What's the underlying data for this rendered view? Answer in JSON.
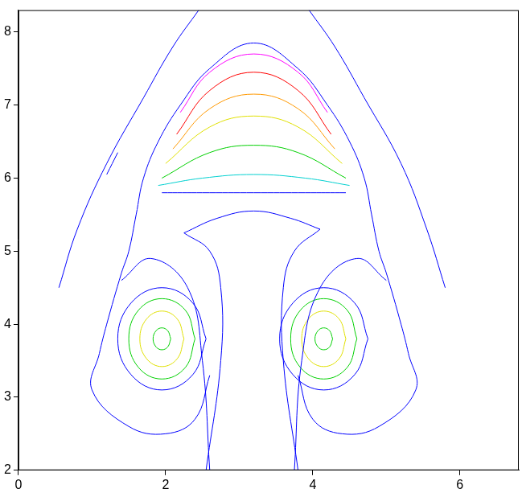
{
  "chart_data": {
    "type": "line",
    "marker": "none",
    "line_style": "solid",
    "grid": false,
    "xlim": [
      0,
      6.8
    ],
    "xticks": [
      0,
      2,
      4,
      6
    ],
    "ylim": [
      2,
      8.3
    ],
    "yticks": [
      2,
      3,
      4,
      5,
      6,
      7,
      8
    ],
    "series": [
      {
        "color": "#0000ff",
        "x": [
          0.55,
          0.8,
          1.2,
          1.7,
          2.1,
          2.45
        ],
        "values": [
          4.5,
          5.3,
          6.2,
          7.1,
          7.8,
          8.3
        ]
      },
      {
        "color": "#0000ff",
        "x": [
          3.95,
          4.3,
          4.7,
          5.2,
          5.55,
          5.8
        ],
        "values": [
          8.3,
          7.8,
          7.1,
          6.2,
          5.3,
          4.5
        ]
      },
      {
        "color": "#0000ff",
        "x": [
          1.2,
          1.35
        ],
        "values": [
          6.05,
          6.35
        ]
      },
      {
        "color": "#0000ff",
        "x": [
          2.6,
          2.4,
          2.0,
          1.5,
          1.0,
          1.1,
          1.2,
          1.4,
          1.5,
          1.6,
          1.7,
          1.9,
          2.2,
          2.6,
          3.2,
          3.8,
          4.2,
          4.5,
          4.7,
          4.8,
          4.9,
          5.0,
          5.2,
          5.3,
          5.4,
          4.9,
          4.4,
          4.0,
          3.8
        ],
        "values": [
          3.3,
          2.7,
          2.5,
          2.6,
          3.1,
          3.6,
          4.0,
          4.7,
          5.0,
          5.5,
          6.0,
          6.5,
          7.0,
          7.5,
          7.85,
          7.5,
          7.0,
          6.5,
          6.0,
          5.5,
          5.0,
          4.7,
          4.0,
          3.6,
          3.1,
          2.6,
          2.5,
          2.7,
          3.3
        ]
      },
      {
        "color": "#ff00ff",
        "x": [
          2.2,
          2.6,
          3.2,
          3.8,
          4.2
        ],
        "values": [
          6.9,
          7.45,
          7.7,
          7.45,
          6.9
        ]
      },
      {
        "color": "#ff0000",
        "x": [
          2.15,
          2.6,
          3.2,
          3.8,
          4.25
        ],
        "values": [
          6.6,
          7.2,
          7.45,
          7.2,
          6.6
        ]
      },
      {
        "color": "#ff9900",
        "x": [
          2.1,
          2.6,
          3.2,
          3.8,
          4.3
        ],
        "values": [
          6.4,
          6.95,
          7.15,
          6.95,
          6.4
        ]
      },
      {
        "color": "#e0e000",
        "x": [
          2.0,
          2.6,
          3.2,
          3.8,
          4.4
        ],
        "values": [
          6.2,
          6.7,
          6.85,
          6.7,
          6.2
        ]
      },
      {
        "color": "#00d000",
        "x": [
          1.95,
          2.6,
          3.2,
          3.8,
          4.45
        ],
        "values": [
          6.0,
          6.35,
          6.45,
          6.35,
          6.0
        ]
      },
      {
        "color": "#00d0d0",
        "x": [
          1.9,
          2.5,
          3.2,
          3.9,
          4.5
        ],
        "values": [
          5.9,
          6.0,
          6.05,
          6.0,
          5.9
        ]
      },
      {
        "color": "#0000ff",
        "x": [
          1.95,
          2.5,
          3.2,
          3.9,
          4.45
        ],
        "values": [
          5.8,
          5.8,
          5.8,
          5.8,
          5.8
        ]
      },
      {
        "color": "#0000ff",
        "x": [
          2.25,
          2.7,
          3.2,
          3.7,
          4.1
        ],
        "values": [
          5.25,
          5.45,
          5.55,
          5.45,
          5.3
        ]
      },
      {
        "color": "#0000ff",
        "x": [
          2.25,
          2.6,
          2.75,
          2.75,
          2.55
        ],
        "values": [
          5.25,
          5.0,
          4.5,
          3.5,
          2.0
        ]
      },
      {
        "color": "#0000ff",
        "x": [
          4.1,
          3.75,
          3.6,
          3.6,
          3.8
        ],
        "values": [
          5.3,
          5.0,
          4.5,
          3.5,
          2.0
        ]
      },
      {
        "color": "#0000ff",
        "x": [
          1.4,
          1.8,
          2.3,
          2.5,
          2.6
        ],
        "values": [
          4.6,
          4.9,
          4.5,
          3.5,
          2.0
        ]
      },
      {
        "color": "#0000ff",
        "x": [
          5.0,
          4.6,
          4.1,
          3.85,
          3.75
        ],
        "values": [
          4.6,
          4.9,
          4.5,
          3.5,
          2.0
        ]
      },
      {
        "color": "#0000ff",
        "x": [
          2.55,
          2.37,
          1.95,
          1.53,
          1.35,
          1.53,
          1.95,
          2.37,
          2.55
        ],
        "values": [
          3.8,
          4.29,
          4.5,
          4.29,
          3.8,
          3.31,
          3.1,
          3.31,
          3.8
        ]
      },
      {
        "color": "#00d000",
        "x": [
          2.4,
          2.27,
          1.95,
          1.63,
          1.5,
          1.63,
          1.95,
          2.27,
          2.4
        ],
        "values": [
          3.8,
          4.19,
          4.35,
          4.19,
          3.8,
          3.41,
          3.25,
          3.41,
          3.8
        ]
      },
      {
        "color": "#e0e000",
        "x": [
          2.25,
          2.16,
          1.95,
          1.74,
          1.65,
          1.74,
          1.95,
          2.16,
          2.25
        ],
        "values": [
          3.8,
          4.07,
          4.18,
          4.07,
          3.8,
          3.53,
          3.42,
          3.53,
          3.8
        ]
      },
      {
        "color": "#00d000",
        "x": [
          2.07,
          2.03,
          1.95,
          1.87,
          1.83,
          1.87,
          1.95,
          2.03,
          2.07
        ],
        "values": [
          3.8,
          3.91,
          3.95,
          3.91,
          3.8,
          3.69,
          3.65,
          3.69,
          3.8
        ]
      },
      {
        "color": "#0000ff",
        "x": [
          4.75,
          4.57,
          4.15,
          3.73,
          3.55,
          3.73,
          4.15,
          4.57,
          4.75
        ],
        "values": [
          3.8,
          4.29,
          4.5,
          4.29,
          3.8,
          3.31,
          3.1,
          3.31,
          3.8
        ]
      },
      {
        "color": "#00d000",
        "x": [
          4.6,
          4.47,
          4.15,
          3.83,
          3.7,
          3.83,
          4.15,
          4.47,
          4.6
        ],
        "values": [
          3.8,
          4.19,
          4.35,
          4.19,
          3.8,
          3.41,
          3.25,
          3.41,
          3.8
        ]
      },
      {
        "color": "#e0e000",
        "x": [
          4.45,
          4.36,
          4.15,
          3.94,
          3.85,
          3.94,
          4.15,
          4.36,
          4.45
        ],
        "values": [
          3.8,
          4.07,
          4.18,
          4.07,
          3.8,
          3.53,
          3.42,
          3.53,
          3.8
        ]
      },
      {
        "color": "#00d000",
        "x": [
          4.27,
          4.23,
          4.15,
          4.07,
          4.03,
          4.07,
          4.15,
          4.23,
          4.27
        ],
        "values": [
          3.8,
          3.91,
          3.95,
          3.91,
          3.8,
          3.69,
          3.65,
          3.69,
          3.8
        ]
      }
    ]
  }
}
